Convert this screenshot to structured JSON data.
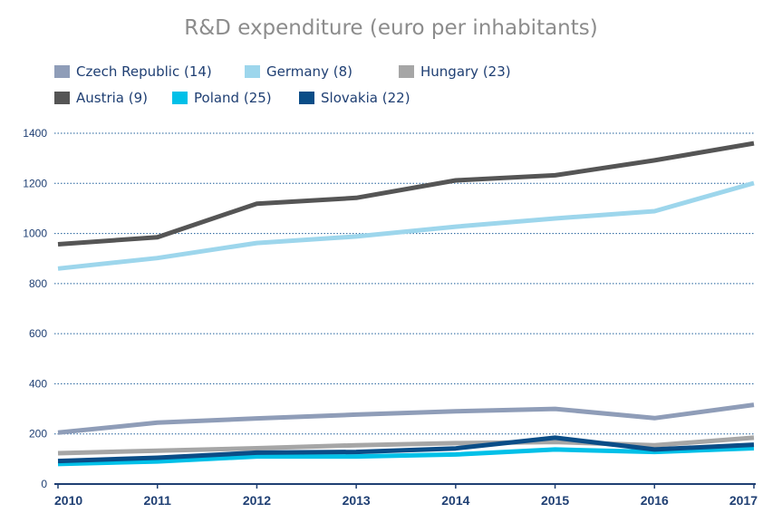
{
  "chart_data": {
    "type": "line",
    "title": "R&D expenditure (euro per inhabitants)",
    "xlabel": "",
    "ylabel": "",
    "x": [
      "2010",
      "2011",
      "2012",
      "2013",
      "2014",
      "2015",
      "2016",
      "2017"
    ],
    "ylim": [
      0,
      1400
    ],
    "yticks": [
      0,
      200,
      400,
      600,
      800,
      1000,
      1200,
      1400
    ],
    "grid": true,
    "legend_position": "top",
    "series": [
      {
        "name": "Czech Republic (14)",
        "color": "#8f9db8",
        "values": [
          205,
          245,
          262,
          277,
          290,
          300,
          263,
          316
        ]
      },
      {
        "name": "Germany (8)",
        "color": "#9dd6ec",
        "values": [
          860,
          902,
          962,
          988,
          1027,
          1060,
          1089,
          1201
        ]
      },
      {
        "name": "Hungary (23)",
        "color": "#a6a6a6",
        "values": [
          123,
          133,
          143,
          155,
          163,
          168,
          155,
          185
        ]
      },
      {
        "name": "Austria (9)",
        "color": "#555555",
        "values": [
          957,
          985,
          1119,
          1142,
          1212,
          1232,
          1292,
          1360
        ]
      },
      {
        "name": "Poland (25)",
        "color": "#00c0e8",
        "values": [
          80,
          90,
          110,
          110,
          118,
          138,
          128,
          143
        ]
      },
      {
        "name": "Slovakia (22)",
        "color": "#0a4d87",
        "values": [
          92,
          105,
          125,
          128,
          142,
          185,
          138,
          157
        ]
      }
    ]
  }
}
